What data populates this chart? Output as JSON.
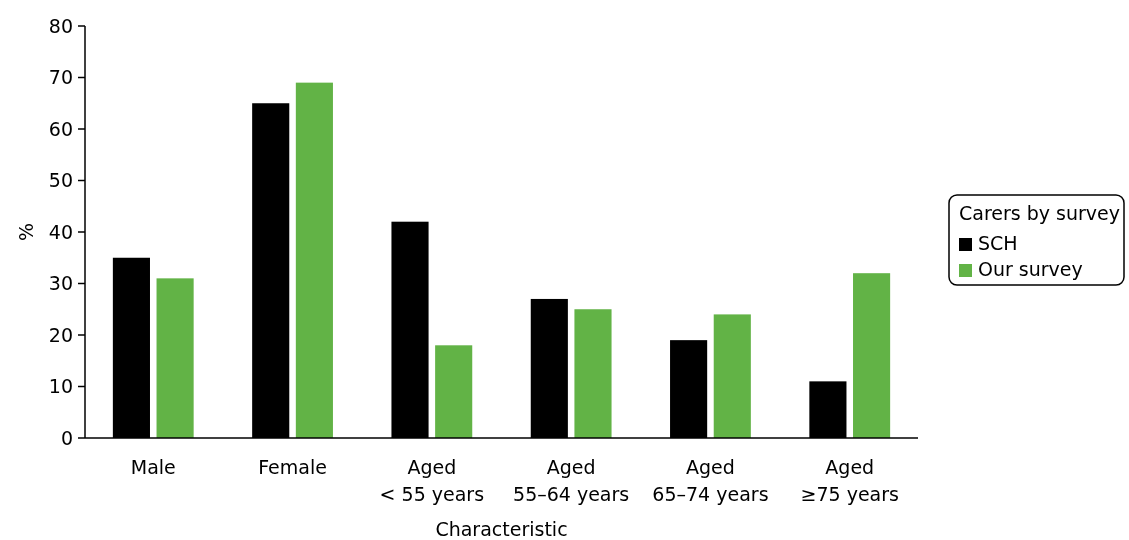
{
  "chart_data": {
    "type": "bar",
    "xlabel": "Characteristic",
    "ylabel": "%",
    "legend_title": "Carers by survey",
    "categories": [
      "Male",
      "Female",
      "Aged\n< 55 years",
      "Aged\n55–64 years",
      "Aged\n65–74 years",
      "Aged\n≥75 years"
    ],
    "series": [
      {
        "name": "SCH",
        "color": "#000000",
        "values": [
          35,
          65,
          42,
          27,
          19,
          11
        ]
      },
      {
        "name": "Our survey",
        "color": "#62b346",
        "values": [
          31,
          69,
          18,
          25,
          24,
          32
        ]
      }
    ],
    "ylim": [
      0,
      80
    ],
    "yticks": [
      0,
      10,
      20,
      30,
      40,
      50,
      60,
      70,
      80
    ],
    "grid": false,
    "legend": "right"
  }
}
